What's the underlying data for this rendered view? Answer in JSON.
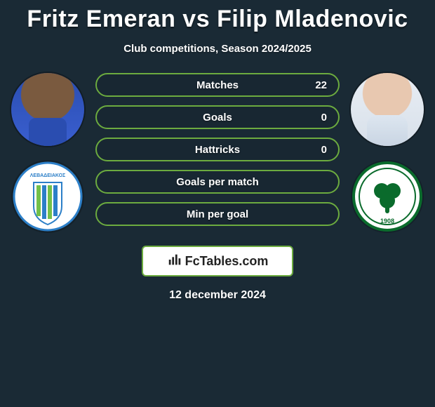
{
  "title": "Fritz Emeran vs Filip Mladenovic",
  "subtitle": "Club competitions, Season 2024/2025",
  "date": "12 december 2024",
  "branding_text": "FcTables.com",
  "colors": {
    "background": "#1a2a35",
    "accent_border": "#6cab3f",
    "text": "#ffffff"
  },
  "player_left": {
    "name": "Fritz Emeran",
    "club": "Levadiakos",
    "club_crest": {
      "bg": "#ffffff",
      "ring": "#2c7fc8",
      "stripe_a": "#73c04a",
      "stripe_b": "#2c7fc8",
      "label": "ΛΕΒΑΔΕΙΑΚΟΣ"
    }
  },
  "player_right": {
    "name": "Filip Mladenovic",
    "club": "Panathinaikos",
    "club_crest": {
      "bg": "#ffffff",
      "ring": "#0a6b2c",
      "clover": "#0a6b2c",
      "year": "1908"
    }
  },
  "stats": [
    {
      "label": "Matches",
      "value_right": "22"
    },
    {
      "label": "Goals",
      "value_right": "0"
    },
    {
      "label": "Hattricks",
      "value_right": "0"
    },
    {
      "label": "Goals per match",
      "value_right": ""
    },
    {
      "label": "Min per goal",
      "value_right": ""
    }
  ]
}
